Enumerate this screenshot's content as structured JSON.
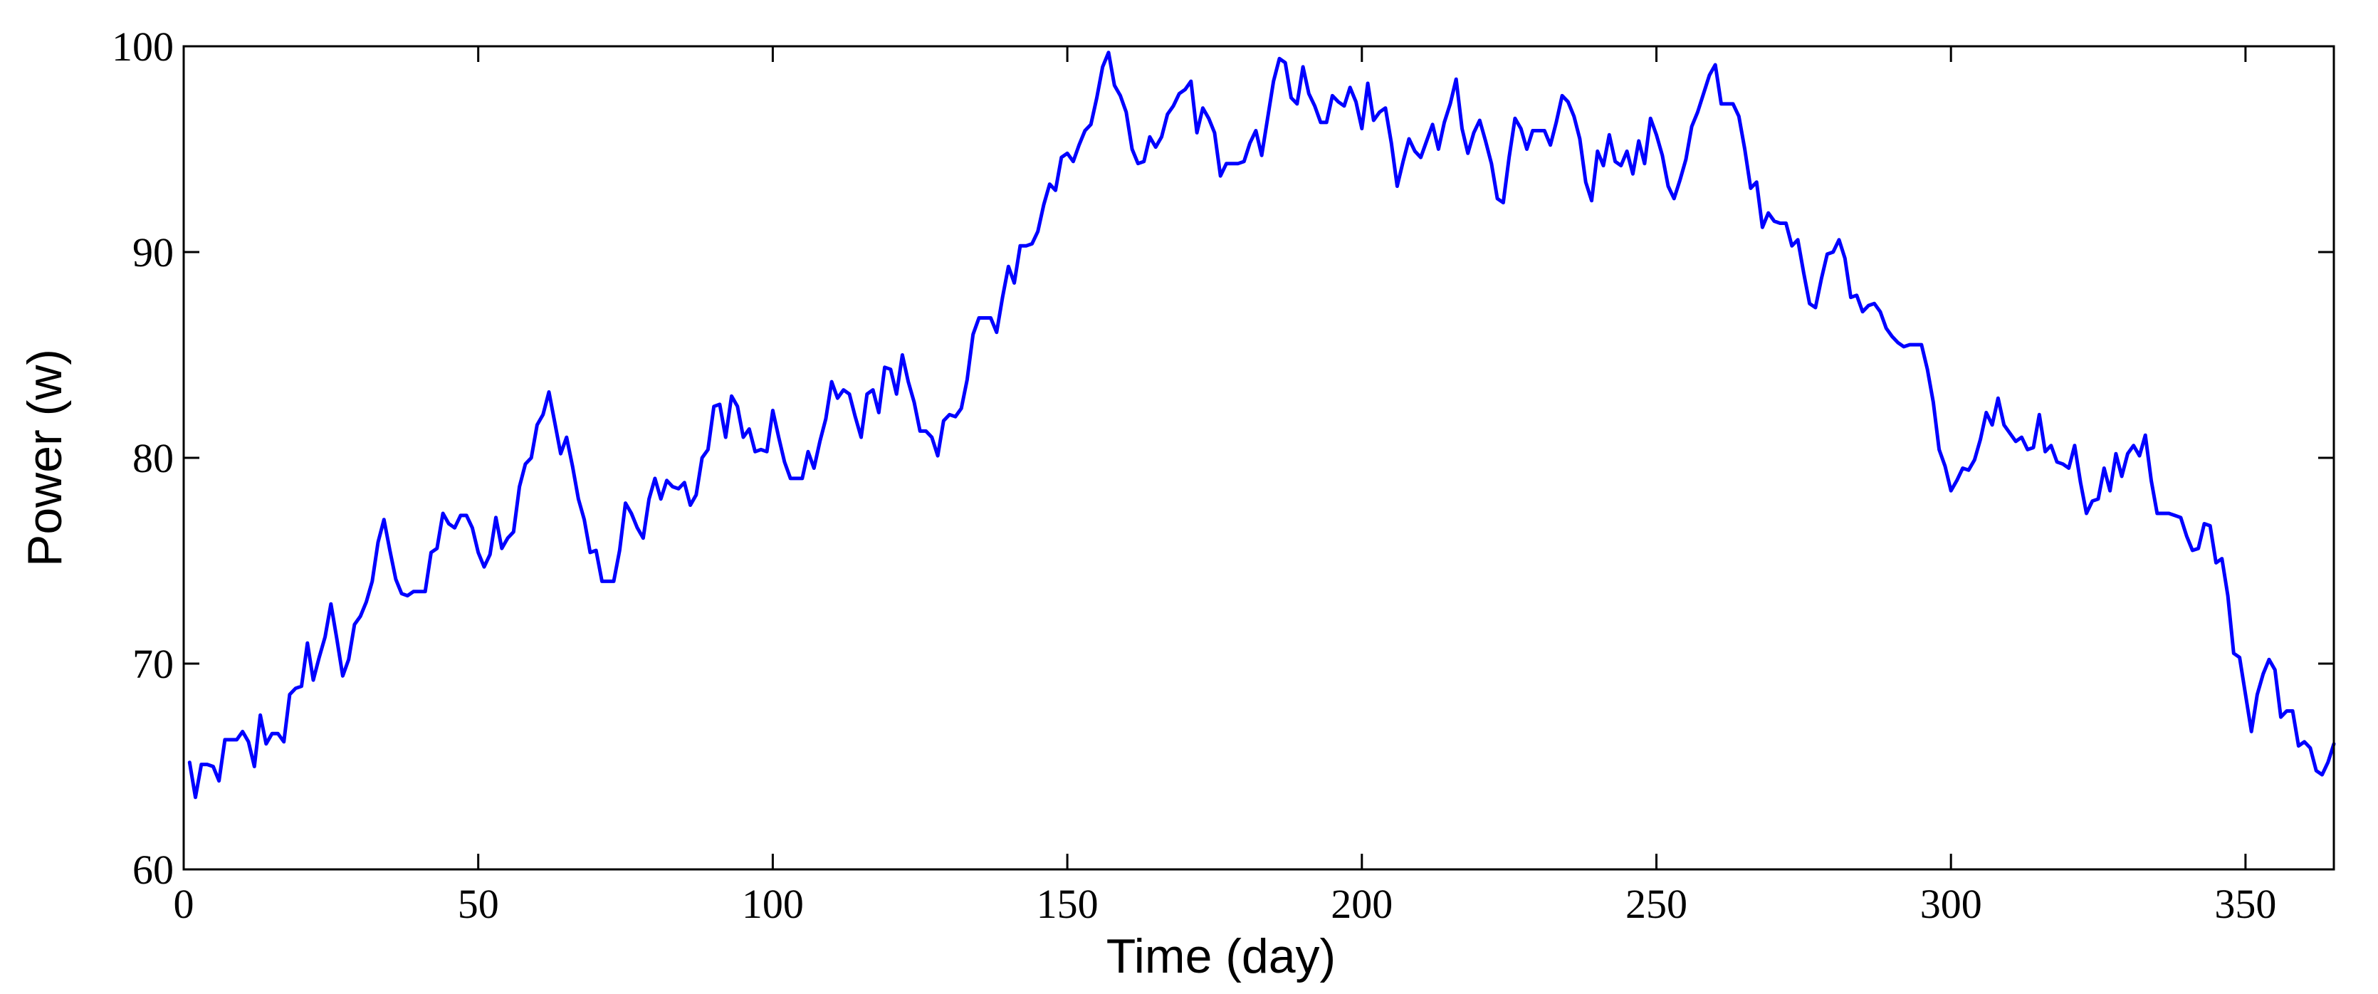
{
  "chart_data": {
    "type": "line",
    "title": "",
    "xlabel": "Time (day)",
    "ylabel": "Power (w)",
    "xlim": [
      0,
      365
    ],
    "ylim": [
      60,
      100
    ],
    "xticks": [
      0,
      50,
      100,
      150,
      200,
      250,
      300,
      350
    ],
    "yticks": [
      60,
      70,
      80,
      90,
      100
    ],
    "grid": false,
    "series": [
      {
        "color": "#0000ff",
        "x": [
          1,
          2,
          3,
          4,
          5,
          6,
          7,
          8,
          9,
          10,
          11,
          12,
          13,
          14,
          15,
          16,
          17,
          18,
          19,
          20,
          21,
          22,
          23,
          24,
          25,
          26,
          27,
          28,
          29,
          30,
          31,
          32,
          33,
          34,
          35,
          36,
          37,
          38,
          39,
          40,
          41,
          42,
          43,
          44,
          45,
          46,
          47,
          48,
          49,
          50,
          51,
          52,
          53,
          54,
          55,
          56,
          57,
          58,
          59,
          60,
          61,
          62,
          63,
          64,
          65,
          66,
          67,
          68,
          69,
          70,
          71,
          72,
          73,
          74,
          75,
          76,
          77,
          78,
          79,
          80,
          81,
          82,
          83,
          84,
          85,
          86,
          87,
          88,
          89,
          90,
          91,
          92,
          93,
          94,
          95,
          96,
          97,
          98,
          99,
          100,
          101,
          102,
          103,
          104,
          105,
          106,
          107,
          108,
          109,
          110,
          111,
          112,
          113,
          114,
          115,
          116,
          117,
          118,
          119,
          120,
          121,
          122,
          123,
          124,
          125,
          126,
          127,
          128,
          129,
          130,
          131,
          132,
          133,
          134,
          135,
          136,
          137,
          138,
          139,
          140,
          141,
          142,
          143,
          144,
          145,
          146,
          147,
          148,
          149,
          150,
          151,
          152,
          153,
          154,
          155,
          156,
          157,
          158,
          159,
          160,
          161,
          162,
          163,
          164,
          165,
          166,
          167,
          168,
          169,
          170,
          171,
          172,
          173,
          174,
          175,
          176,
          177,
          178,
          179,
          180,
          181,
          182,
          183,
          184,
          185,
          186,
          187,
          188,
          189,
          190,
          191,
          192,
          193,
          194,
          195,
          196,
          197,
          198,
          199,
          200,
          201,
          202,
          203,
          204,
          205,
          206,
          207,
          208,
          209,
          210,
          211,
          212,
          213,
          214,
          215,
          216,
          217,
          218,
          219,
          220,
          221,
          222,
          223,
          224,
          225,
          226,
          227,
          228,
          229,
          230,
          231,
          232,
          233,
          234,
          235,
          236,
          237,
          238,
          239,
          240,
          241,
          242,
          243,
          244,
          245,
          246,
          247,
          248,
          249,
          250,
          251,
          252,
          253,
          254,
          255,
          256,
          257,
          258,
          259,
          260,
          261,
          262,
          263,
          264,
          265,
          266,
          267,
          268,
          269,
          270,
          271,
          272,
          273,
          274,
          275,
          276,
          277,
          278,
          279,
          280,
          281,
          282,
          283,
          284,
          285,
          286,
          287,
          288,
          289,
          290,
          291,
          292,
          293,
          294,
          295,
          296,
          297,
          298,
          299,
          300,
          301,
          302,
          303,
          304,
          305,
          306,
          307,
          308,
          309,
          310,
          311,
          312,
          313,
          314,
          315,
          316,
          317,
          318,
          319,
          320,
          321,
          322,
          323,
          324,
          325,
          326,
          327,
          328,
          329,
          330,
          331,
          332,
          333,
          334,
          335,
          336,
          337,
          338,
          339,
          340,
          341,
          342,
          343,
          344,
          345,
          346,
          347,
          348,
          349,
          350,
          351,
          352,
          353,
          354,
          355,
          356,
          357,
          358,
          359,
          360,
          361,
          362,
          363,
          364,
          365
        ],
        "y": [
          65.2,
          63.5,
          65.1,
          65.1,
          65.0,
          64.3,
          66.3,
          66.3,
          66.3,
          66.7,
          66.2,
          65.0,
          67.5,
          66.1,
          66.6,
          66.6,
          66.2,
          68.5,
          68.8,
          68.9,
          71.0,
          69.2,
          70.3,
          71.3,
          72.9,
          71.2,
          69.4,
          70.2,
          71.9,
          72.3,
          73.0,
          74.0,
          75.9,
          77.0,
          75.5,
          74.1,
          73.4,
          73.3,
          73.5,
          73.5,
          73.5,
          75.4,
          75.6,
          77.3,
          76.8,
          76.6,
          77.2,
          77.2,
          76.6,
          75.4,
          74.7,
          75.3,
          77.1,
          75.6,
          76.1,
          76.4,
          78.6,
          79.7,
          80.0,
          81.6,
          82.1,
          83.2,
          81.7,
          80.2,
          81.0,
          79.6,
          78.0,
          77.0,
          75.4,
          75.5,
          74.0,
          74.0,
          74.0,
          75.5,
          77.8,
          77.3,
          76.6,
          76.1,
          78.0,
          79.0,
          78.0,
          78.9,
          78.6,
          78.5,
          78.8,
          77.7,
          78.2,
          80.0,
          80.4,
          82.5,
          82.6,
          81.0,
          83.0,
          82.5,
          81.0,
          81.4,
          80.3,
          80.4,
          80.3,
          82.3,
          81.0,
          79.8,
          79.0,
          79.0,
          79.0,
          80.3,
          79.5,
          80.8,
          81.9,
          83.7,
          82.9,
          83.3,
          83.1,
          82.0,
          81.0,
          83.1,
          83.3,
          82.2,
          84.4,
          84.3,
          83.1,
          85.0,
          83.7,
          82.7,
          81.3,
          81.3,
          81.0,
          80.1,
          81.8,
          82.1,
          82.0,
          82.4,
          83.8,
          86.0,
          86.8,
          86.8,
          86.8,
          86.1,
          87.8,
          89.3,
          88.5,
          90.3,
          90.3,
          90.4,
          91.0,
          92.3,
          93.3,
          93.0,
          94.6,
          94.8,
          94.4,
          95.2,
          95.9,
          96.2,
          97.5,
          99.0,
          99.7,
          98.1,
          97.6,
          96.8,
          95.0,
          94.3,
          94.4,
          95.6,
          95.1,
          95.6,
          96.7,
          97.1,
          97.7,
          97.9,
          98.3,
          95.8,
          97.0,
          96.5,
          95.8,
          93.7,
          94.3,
          94.3,
          94.3,
          94.4,
          95.3,
          95.9,
          94.7,
          96.5,
          98.3,
          99.4,
          99.2,
          97.5,
          97.2,
          99.0,
          97.7,
          97.1,
          96.3,
          96.3,
          97.6,
          97.3,
          97.1,
          98.0,
          97.3,
          96.0,
          98.2,
          96.4,
          96.8,
          97.0,
          95.3,
          93.2,
          94.4,
          95.5,
          94.9,
          94.6,
          95.4,
          96.2,
          95.0,
          96.3,
          97.2,
          98.4,
          96.0,
          94.8,
          95.8,
          96.4,
          95.4,
          94.3,
          92.6,
          92.4,
          94.6,
          96.5,
          96.0,
          95.0,
          95.9,
          95.9,
          95.9,
          95.2,
          96.3,
          97.6,
          97.3,
          96.6,
          95.5,
          93.4,
          92.5,
          94.9,
          94.2,
          95.7,
          94.4,
          94.2,
          94.9,
          93.8,
          95.4,
          94.3,
          96.5,
          95.7,
          94.7,
          93.2,
          92.6,
          93.5,
          94.5,
          96.1,
          96.8,
          97.7,
          98.6,
          99.1,
          97.2,
          97.2,
          97.2,
          96.6,
          95.0,
          93.1,
          93.4,
          91.2,
          91.9,
          91.5,
          91.4,
          91.4,
          90.3,
          90.6,
          89.0,
          87.5,
          87.3,
          88.7,
          89.9,
          90.0,
          90.6,
          89.7,
          87.8,
          87.9,
          87.1,
          87.4,
          87.5,
          87.1,
          86.3,
          85.9,
          85.6,
          85.4,
          85.5,
          85.5,
          85.5,
          84.3,
          82.7,
          80.4,
          79.6,
          78.4,
          78.9,
          79.5,
          79.4,
          79.9,
          80.9,
          82.2,
          81.6,
          82.9,
          81.6,
          81.2,
          80.8,
          81.0,
          80.4,
          80.5,
          82.1,
          80.3,
          80.6,
          79.8,
          79.7,
          79.5,
          80.6,
          78.8,
          77.3,
          77.9,
          78.0,
          79.5,
          78.4,
          80.2,
          79.1,
          80.2,
          80.6,
          80.1,
          81.1,
          78.9,
          77.3,
          77.3,
          77.3,
          77.2,
          77.1,
          76.2,
          75.5,
          75.6,
          76.8,
          76.7,
          74.9,
          75.1,
          73.3,
          70.5,
          70.3,
          68.5,
          66.7,
          68.5,
          69.5,
          70.2,
          69.7,
          67.4,
          67.7,
          67.7,
          66.0,
          66.2,
          65.9,
          64.8,
          64.6,
          65.2,
          66.1
        ]
      }
    ]
  }
}
